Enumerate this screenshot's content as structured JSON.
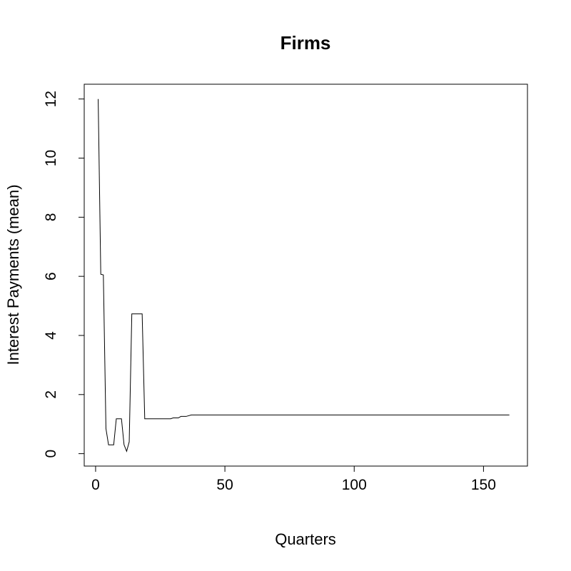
{
  "chart_data": {
    "type": "line",
    "title": "Firms",
    "xlabel": "Quarters",
    "ylabel": "Interest Payments (mean)",
    "xlim": [
      -4.4,
      167
    ],
    "ylim": [
      -0.42,
      12.5
    ],
    "x_ticks": [
      0,
      50,
      100,
      150
    ],
    "y_ticks": [
      0,
      2,
      4,
      6,
      8,
      10,
      12
    ],
    "grid": false,
    "legend": "none",
    "line_color": "#000000",
    "series": [
      {
        "points": [
          [
            1,
            12.0
          ],
          [
            2,
            6.07
          ],
          [
            3,
            6.05
          ],
          [
            4,
            0.85
          ],
          [
            5,
            0.3
          ],
          [
            6,
            0.3
          ],
          [
            7,
            0.3
          ],
          [
            8,
            1.18
          ],
          [
            9,
            1.18
          ],
          [
            10,
            1.18
          ],
          [
            11,
            0.3
          ],
          [
            12,
            0.08
          ],
          [
            13,
            0.4
          ],
          [
            14,
            4.73
          ],
          [
            15,
            4.73
          ],
          [
            16,
            4.73
          ],
          [
            17,
            4.73
          ],
          [
            18,
            4.73
          ],
          [
            19,
            1.18
          ],
          [
            20,
            1.18
          ],
          [
            25,
            1.18
          ],
          [
            29,
            1.18
          ],
          [
            30,
            1.21
          ],
          [
            32,
            1.21
          ],
          [
            33,
            1.26
          ],
          [
            35,
            1.26
          ],
          [
            37,
            1.31
          ],
          [
            40,
            1.31
          ],
          [
            60,
            1.31
          ],
          [
            80,
            1.31
          ],
          [
            100,
            1.31
          ],
          [
            120,
            1.31
          ],
          [
            140,
            1.31
          ],
          [
            160,
            1.31
          ]
        ]
      }
    ]
  }
}
